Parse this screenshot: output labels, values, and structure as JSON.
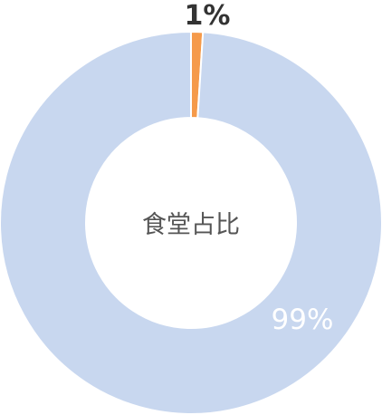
{
  "chart_data": {
    "type": "pie",
    "style": "donut",
    "center_label": "食堂占比",
    "slices": [
      {
        "label": "1%",
        "value": 1,
        "color": "#f59a4a"
      },
      {
        "label": "99%",
        "value": 99,
        "color": "#c8d7ef"
      }
    ],
    "start_angle_deg": 0,
    "separator_color": "#ffffff"
  }
}
